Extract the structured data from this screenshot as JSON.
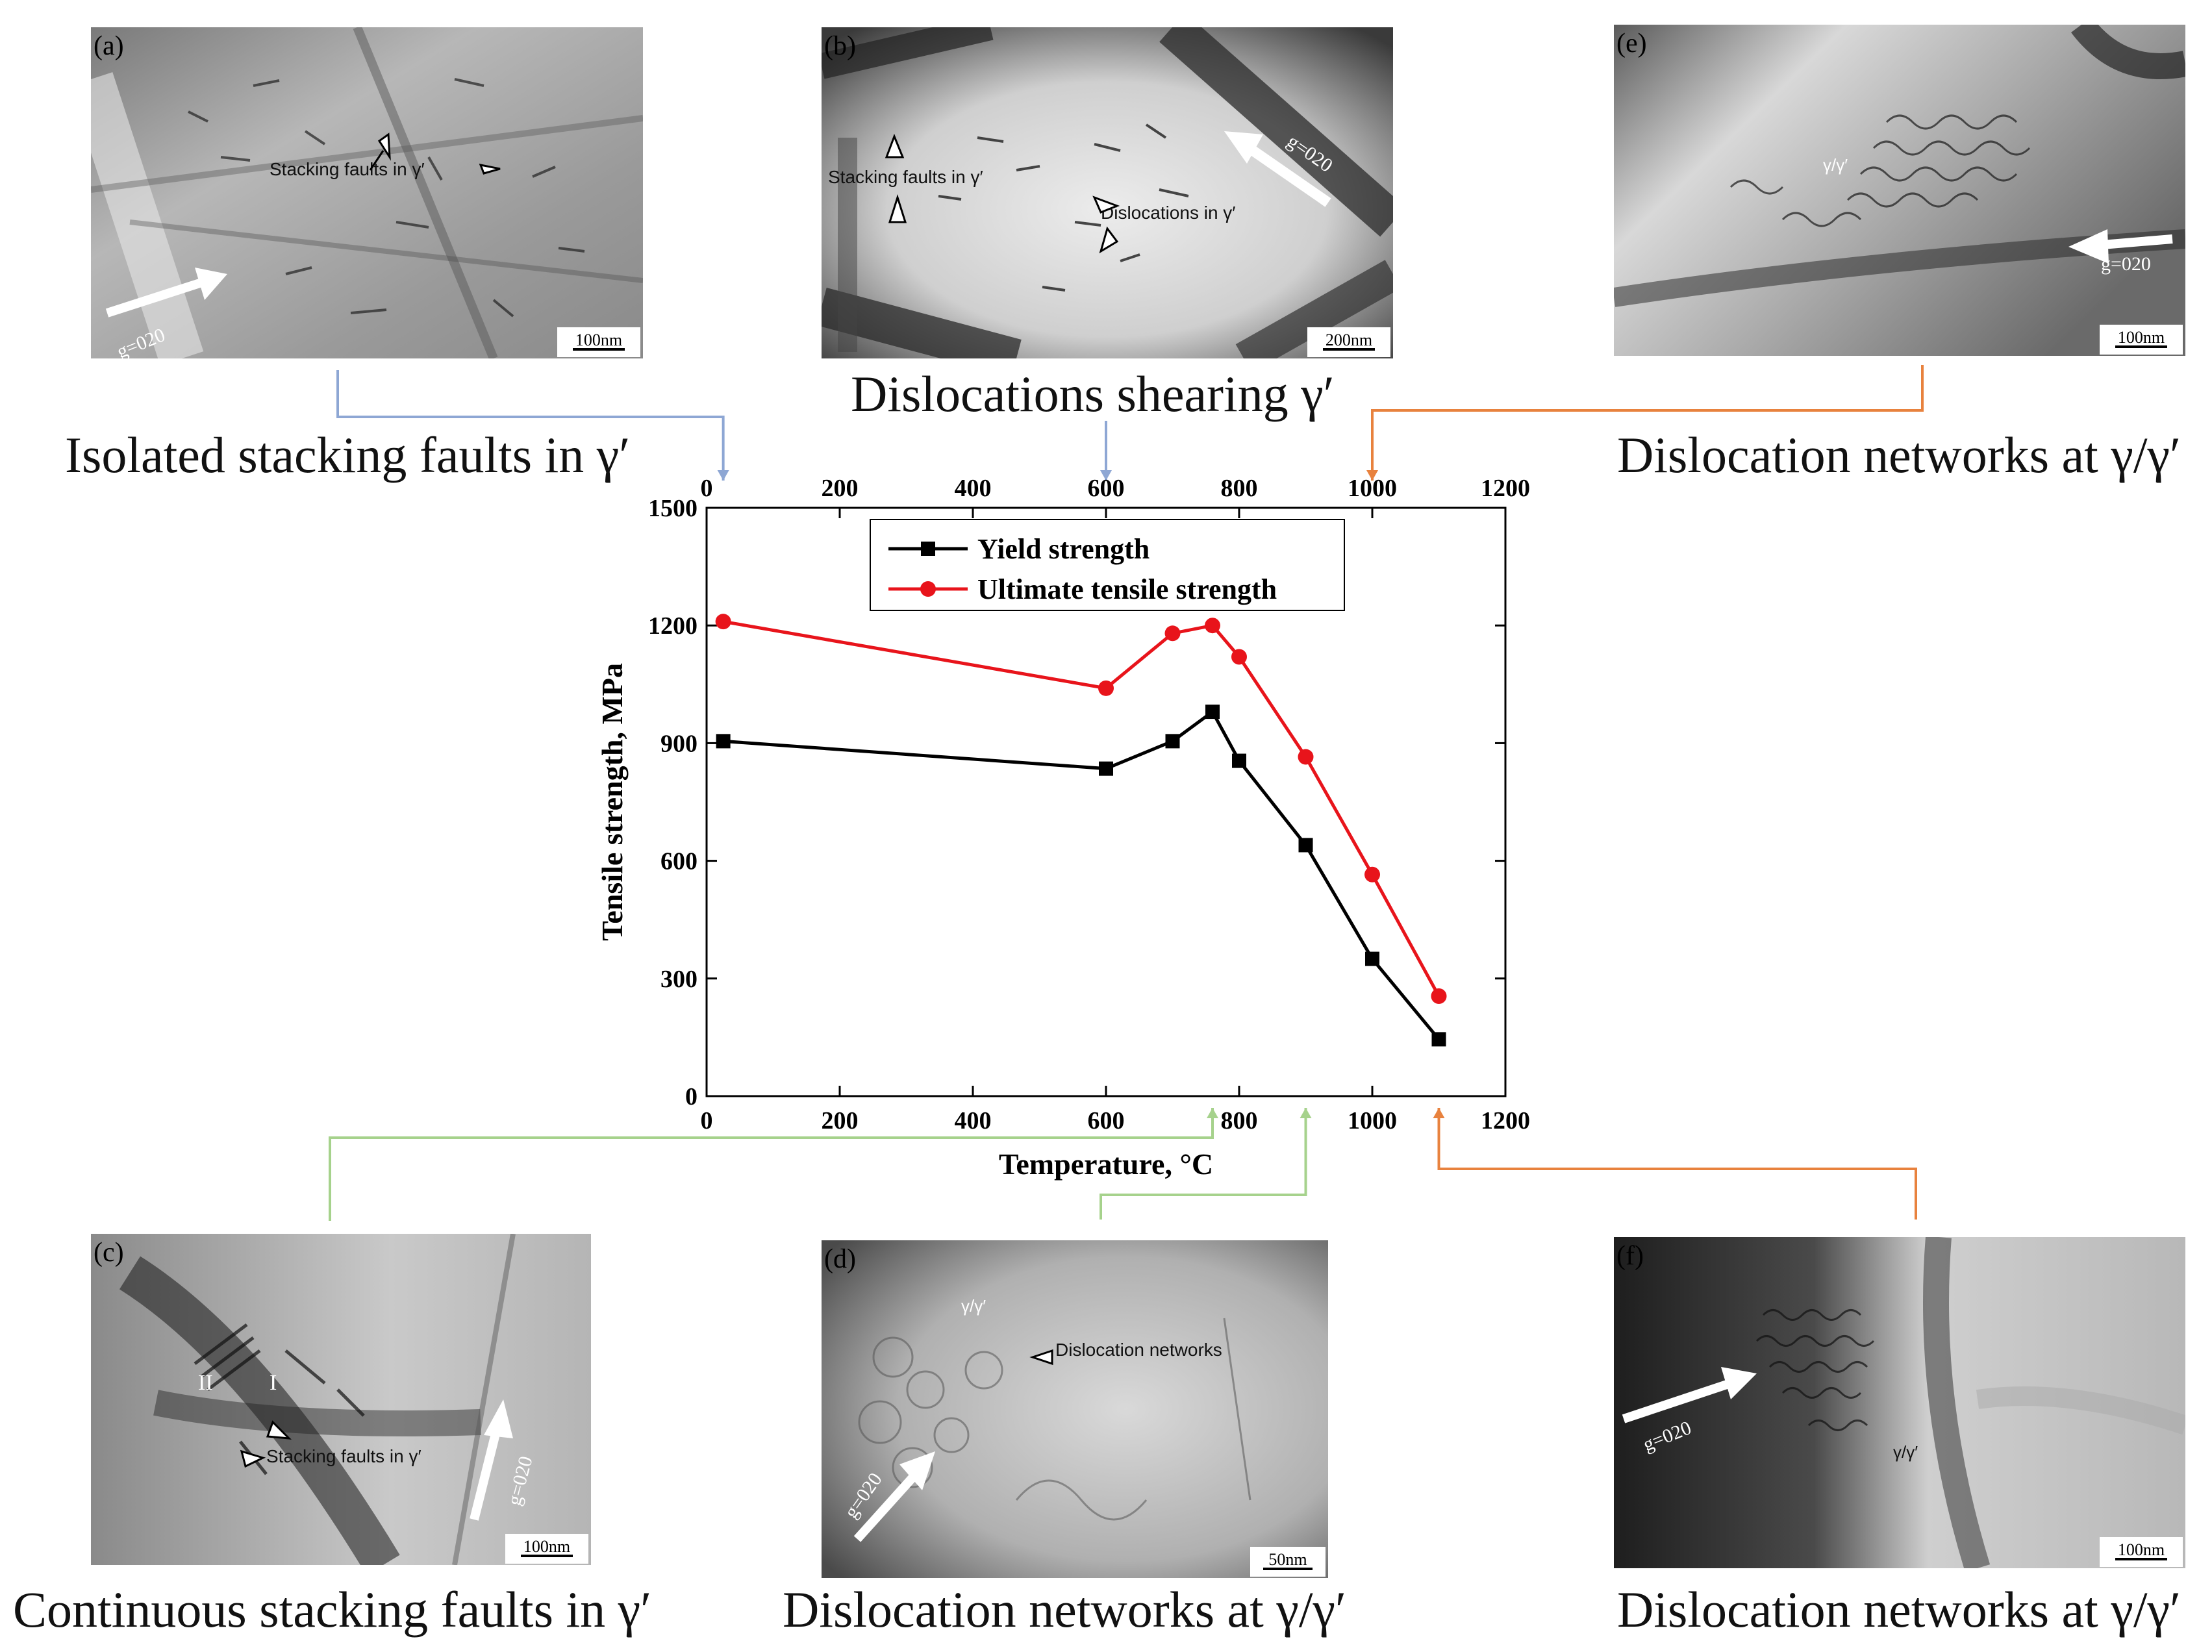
{
  "panels": {
    "a": {
      "tag": "(a)",
      "scale": "100nm",
      "annotations": [
        "Stacking faults in γ′"
      ],
      "g_vector": "g=020"
    },
    "b": {
      "tag": "(b)",
      "scale": "200nm",
      "annotations": [
        "Stacking faults in γ′",
        "Dislocations in γ′"
      ],
      "g_vector": "g=020"
    },
    "e": {
      "tag": "(e)",
      "scale": "100nm",
      "annotations": [
        "γ/γ′"
      ],
      "g_vector": "g=020"
    },
    "c": {
      "tag": "(c)",
      "scale": "100nm",
      "annotations": [
        "II",
        "I",
        "Stacking faults in γ′"
      ],
      "g_vector": "g=020"
    },
    "d": {
      "tag": "(d)",
      "scale": "50nm",
      "annotations": [
        "γ/γ′",
        "Dislocation networks"
      ],
      "g_vector": "g=020"
    },
    "f": {
      "tag": "(f)",
      "scale": "100nm",
      "annotations": [
        "γ/γ′"
      ],
      "g_vector": "g=020"
    }
  },
  "captions": {
    "a": "Isolated stacking faults in γ′",
    "b": "Dislocations shearing γ′",
    "e": "Dislocation networks at γ/γ′",
    "c": "Continuous stacking faults in γ′",
    "d": "Dislocation networks at γ/γ′",
    "f": "Dislocation networks at γ/γ′"
  },
  "colors": {
    "yield": "#000000",
    "uts": "#e8141b",
    "connector_blue": "#8ea7d4",
    "connector_orange": "#e8823e",
    "connector_green": "#a6d28c"
  },
  "chart_data": {
    "type": "line",
    "xlabel": "Temperature, °C",
    "ylabel": "Tensile strength, MPa",
    "xlim": [
      0,
      1200
    ],
    "ylim": [
      0,
      1500
    ],
    "xticks": [
      0,
      200,
      400,
      600,
      800,
      1000,
      1200
    ],
    "yticks": [
      0,
      300,
      600,
      900,
      1200,
      1500
    ],
    "legend_position": "top-center",
    "grid": false,
    "series": [
      {
        "name": "Yield strength",
        "marker": "square",
        "x": [
          25,
          600,
          700,
          760,
          800,
          900,
          1000,
          1100
        ],
        "y": [
          905,
          835,
          905,
          980,
          855,
          640,
          350,
          145
        ]
      },
      {
        "name": "Ultimate tensile strength",
        "marker": "circle",
        "x": [
          25,
          600,
          700,
          760,
          800,
          900,
          1000,
          1100
        ],
        "y": [
          1210,
          1040,
          1180,
          1200,
          1120,
          865,
          565,
          255
        ]
      }
    ]
  }
}
